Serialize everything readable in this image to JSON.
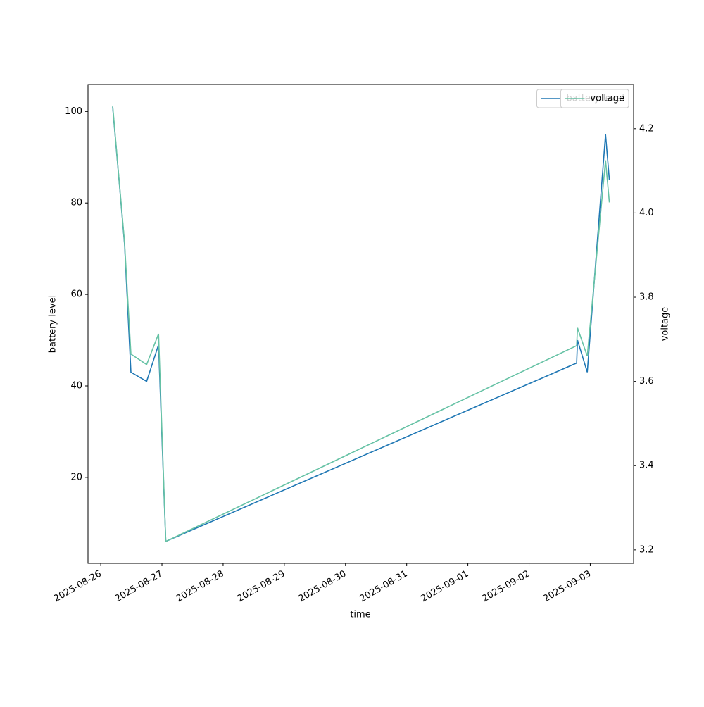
{
  "chart_data": {
    "type": "line",
    "x_label": "time",
    "y_label": "battery level",
    "y2_label": "voltage",
    "x": [
      "2025-08-26T04:40",
      "2025-08-26T07:10",
      "2025-08-26T09:20",
      "2025-08-26T11:50",
      "2025-08-26T18:00",
      "2025-08-26T22:40",
      "2025-08-27T01:30",
      "2025-09-02T18:40",
      "2025-09-02T19:00",
      "2025-09-02T22:50",
      "2025-09-03T06:00",
      "2025-09-03T07:30"
    ],
    "series": [
      {
        "name": "battery level",
        "color": "#1f77b4",
        "values": [
          101,
          85,
          71,
          43,
          41,
          49,
          6,
          45,
          50,
          43,
          95,
          85
        ]
      },
      {
        "name": "voltage",
        "color": "#66c2a5",
        "axis": "y2",
        "values": [
          4.255,
          4.08,
          3.93,
          3.665,
          3.64,
          3.713,
          3.22,
          3.685,
          3.727,
          3.66,
          4.125,
          4.025
        ]
      }
    ],
    "xlim": [
      "2025-08-25T19:00",
      "2025-09-03T17:00"
    ],
    "xticks": [
      "2025-08-26",
      "2025-08-27",
      "2025-08-28",
      "2025-08-29",
      "2025-08-30",
      "2025-08-31",
      "2025-09-01",
      "2025-09-02",
      "2025-09-03"
    ],
    "ylim": [
      1.2,
      105.9
    ],
    "yticks": [
      20,
      40,
      60,
      80,
      100
    ],
    "y2lim": [
      3.168,
      4.305
    ],
    "y2ticks": [
      3.2,
      3.4,
      3.6,
      3.8,
      {
        "value": 4,
        "label": "4.0"
      },
      4.2
    ],
    "legend": "upper right"
  }
}
